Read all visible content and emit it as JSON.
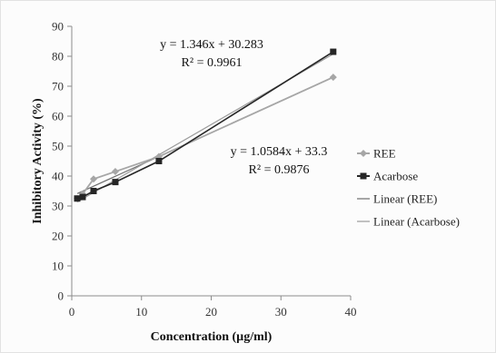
{
  "chart_data": {
    "type": "line",
    "title": "",
    "xlabel": "Concentration (µg/ml)",
    "ylabel": "Inhibitory Activity (%)",
    "xlim": [
      0,
      40
    ],
    "ylim": [
      0,
      90
    ],
    "xticks": [
      0,
      10,
      20,
      30,
      40
    ],
    "yticks": [
      0,
      10,
      20,
      30,
      40,
      50,
      60,
      70,
      80,
      90
    ],
    "grid": false,
    "legend_position": "right",
    "series": [
      {
        "name": "REE",
        "marker": "diamond",
        "color": "#a6a6a6",
        "x": [
          0.78,
          1.56,
          3.125,
          6.25,
          12.5,
          37.5
        ],
        "y": [
          32.5,
          34,
          39,
          41.5,
          46.5,
          73
        ]
      },
      {
        "name": "Acarbose",
        "marker": "square",
        "color": "#262626",
        "x": [
          0.78,
          1.56,
          3.125,
          6.25,
          12.5,
          37.5
        ],
        "y": [
          32.5,
          33,
          35,
          38,
          45,
          81.5
        ]
      }
    ],
    "trendlines": [
      {
        "name": "Linear (REE)",
        "color": "#6e6e6e",
        "slope": 1.0584,
        "intercept": 33.3,
        "equation": "y = 1.0584x + 33.3",
        "r2_label": "R² = 0.9876"
      },
      {
        "name": "Linear (Acarbose)",
        "color": "#9a9a9a",
        "slope": 1.346,
        "intercept": 30.283,
        "equation": "y = 1.346x + 30.283",
        "r2_label": "R² = 0.9961"
      }
    ]
  }
}
